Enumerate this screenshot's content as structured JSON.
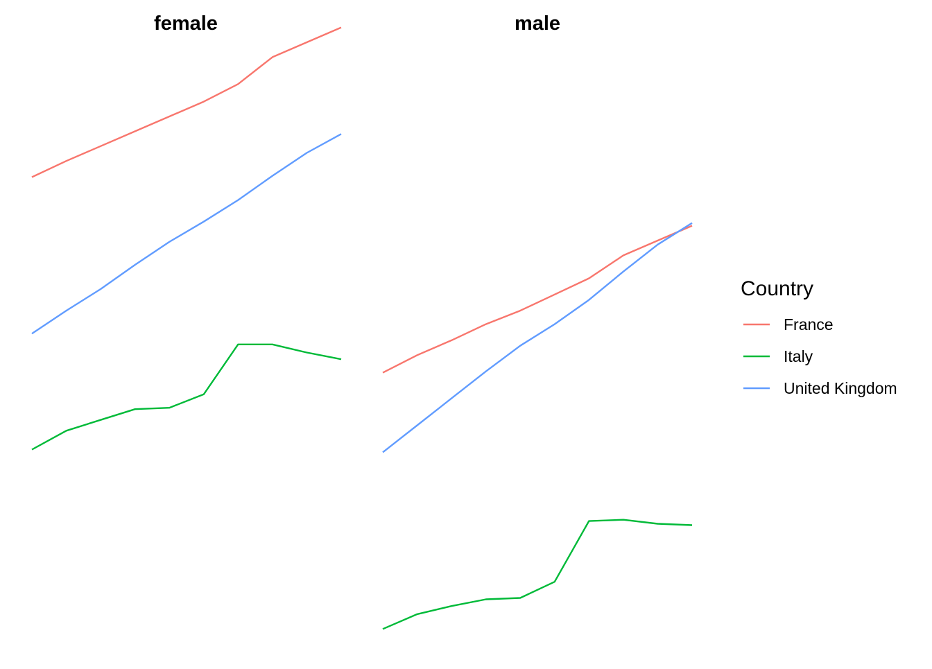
{
  "chart_data": {
    "type": "line",
    "x": [
      1,
      2,
      3,
      4,
      5,
      6,
      7,
      8,
      9,
      10
    ],
    "ylim": [
      0,
      22
    ],
    "grid": false,
    "axes_visible": false,
    "legend_placement": "right",
    "legend": {
      "title": "Country",
      "entries": [
        {
          "label": "France",
          "color": "#F8766D"
        },
        {
          "label": "Italy",
          "color": "#00BA38"
        },
        {
          "label": "United Kingdom",
          "color": "#619CFF"
        }
      ]
    },
    "panels": [
      {
        "title": "female",
        "series": [
          {
            "name": "France",
            "color": "#F8766D",
            "values": [
              17.0,
              17.6,
              18.15,
              18.7,
              19.25,
              19.8,
              20.45,
              21.45,
              22.0,
              22.55
            ]
          },
          {
            "name": "United Kingdom",
            "color": "#619CFF",
            "values": [
              11.2,
              12.05,
              12.85,
              13.75,
              14.6,
              15.35,
              16.15,
              17.05,
              17.9,
              18.6
            ]
          },
          {
            "name": "Italy",
            "color": "#00BA38",
            "values": [
              6.9,
              7.6,
              8.0,
              8.4,
              8.45,
              8.95,
              10.8,
              10.8,
              10.5,
              10.25
            ]
          }
        ]
      },
      {
        "title": "male",
        "series": [
          {
            "name": "France",
            "color": "#F8766D",
            "values": [
              9.75,
              10.4,
              10.95,
              11.55,
              12.05,
              12.65,
              13.25,
              14.1,
              14.65,
              15.2
            ]
          },
          {
            "name": "United Kingdom",
            "color": "#619CFF",
            "values": [
              6.8,
              7.8,
              8.8,
              9.8,
              10.75,
              11.55,
              12.45,
              13.5,
              14.5,
              15.3
            ]
          },
          {
            "name": "Italy",
            "color": "#00BA38",
            "values": [
              0.25,
              0.8,
              1.1,
              1.35,
              1.4,
              2.0,
              4.25,
              4.3,
              4.15,
              4.1
            ]
          }
        ]
      }
    ]
  }
}
